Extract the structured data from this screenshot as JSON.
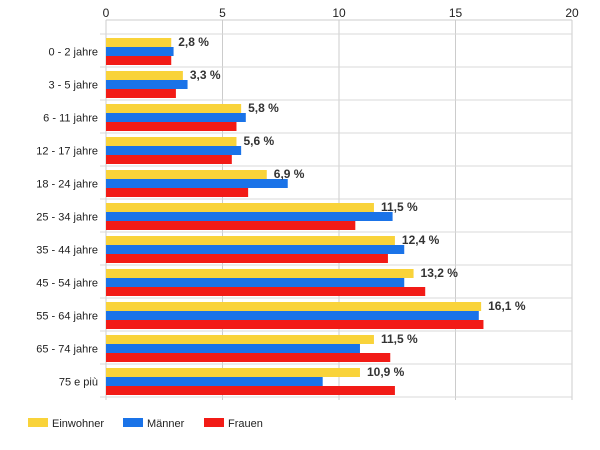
{
  "chart_data": {
    "type": "bar",
    "orientation": "horizontal",
    "categories": [
      "0 - 2 jahre",
      "3 - 5 jahre",
      "6 - 11 jahre",
      "12 - 17 jahre",
      "18 - 24 jahre",
      "25 - 34 jahre",
      "35 - 44 jahre",
      "45 - 54 jahre",
      "55 - 64 jahre",
      "65 - 74 jahre",
      "75 e più"
    ],
    "series": [
      {
        "name": "Einwohner",
        "color": "#f9d33a",
        "values": [
          2.8,
          3.3,
          5.8,
          5.6,
          6.9,
          11.5,
          12.4,
          13.2,
          16.1,
          11.5,
          10.9
        ]
      },
      {
        "name": "Männer",
        "color": "#1a73e8",
        "values": [
          2.9,
          3.5,
          6.0,
          5.8,
          7.8,
          12.3,
          12.8,
          12.8,
          16.0,
          10.9,
          9.3
        ]
      },
      {
        "name": "Frauen",
        "color": "#f21b16",
        "values": [
          2.8,
          3.0,
          5.6,
          5.4,
          6.1,
          10.7,
          12.1,
          13.7,
          16.2,
          12.2,
          12.4
        ]
      }
    ],
    "data_labels": [
      "2,8 %",
      "3,3 %",
      "5,8 %",
      "5,6 %",
      "6,9 %",
      "11,5 %",
      "12,4 %",
      "13,2 %",
      "16,1 %",
      "11,5 %",
      "10,9 %"
    ],
    "xlim": [
      0,
      20
    ],
    "xticks": [
      0,
      5,
      10,
      15,
      20
    ],
    "x_tick_labels": [
      "0",
      "5",
      "10",
      "15",
      "20"
    ],
    "axis_position": "top",
    "grid": true,
    "legend_position": "bottom-left"
  }
}
